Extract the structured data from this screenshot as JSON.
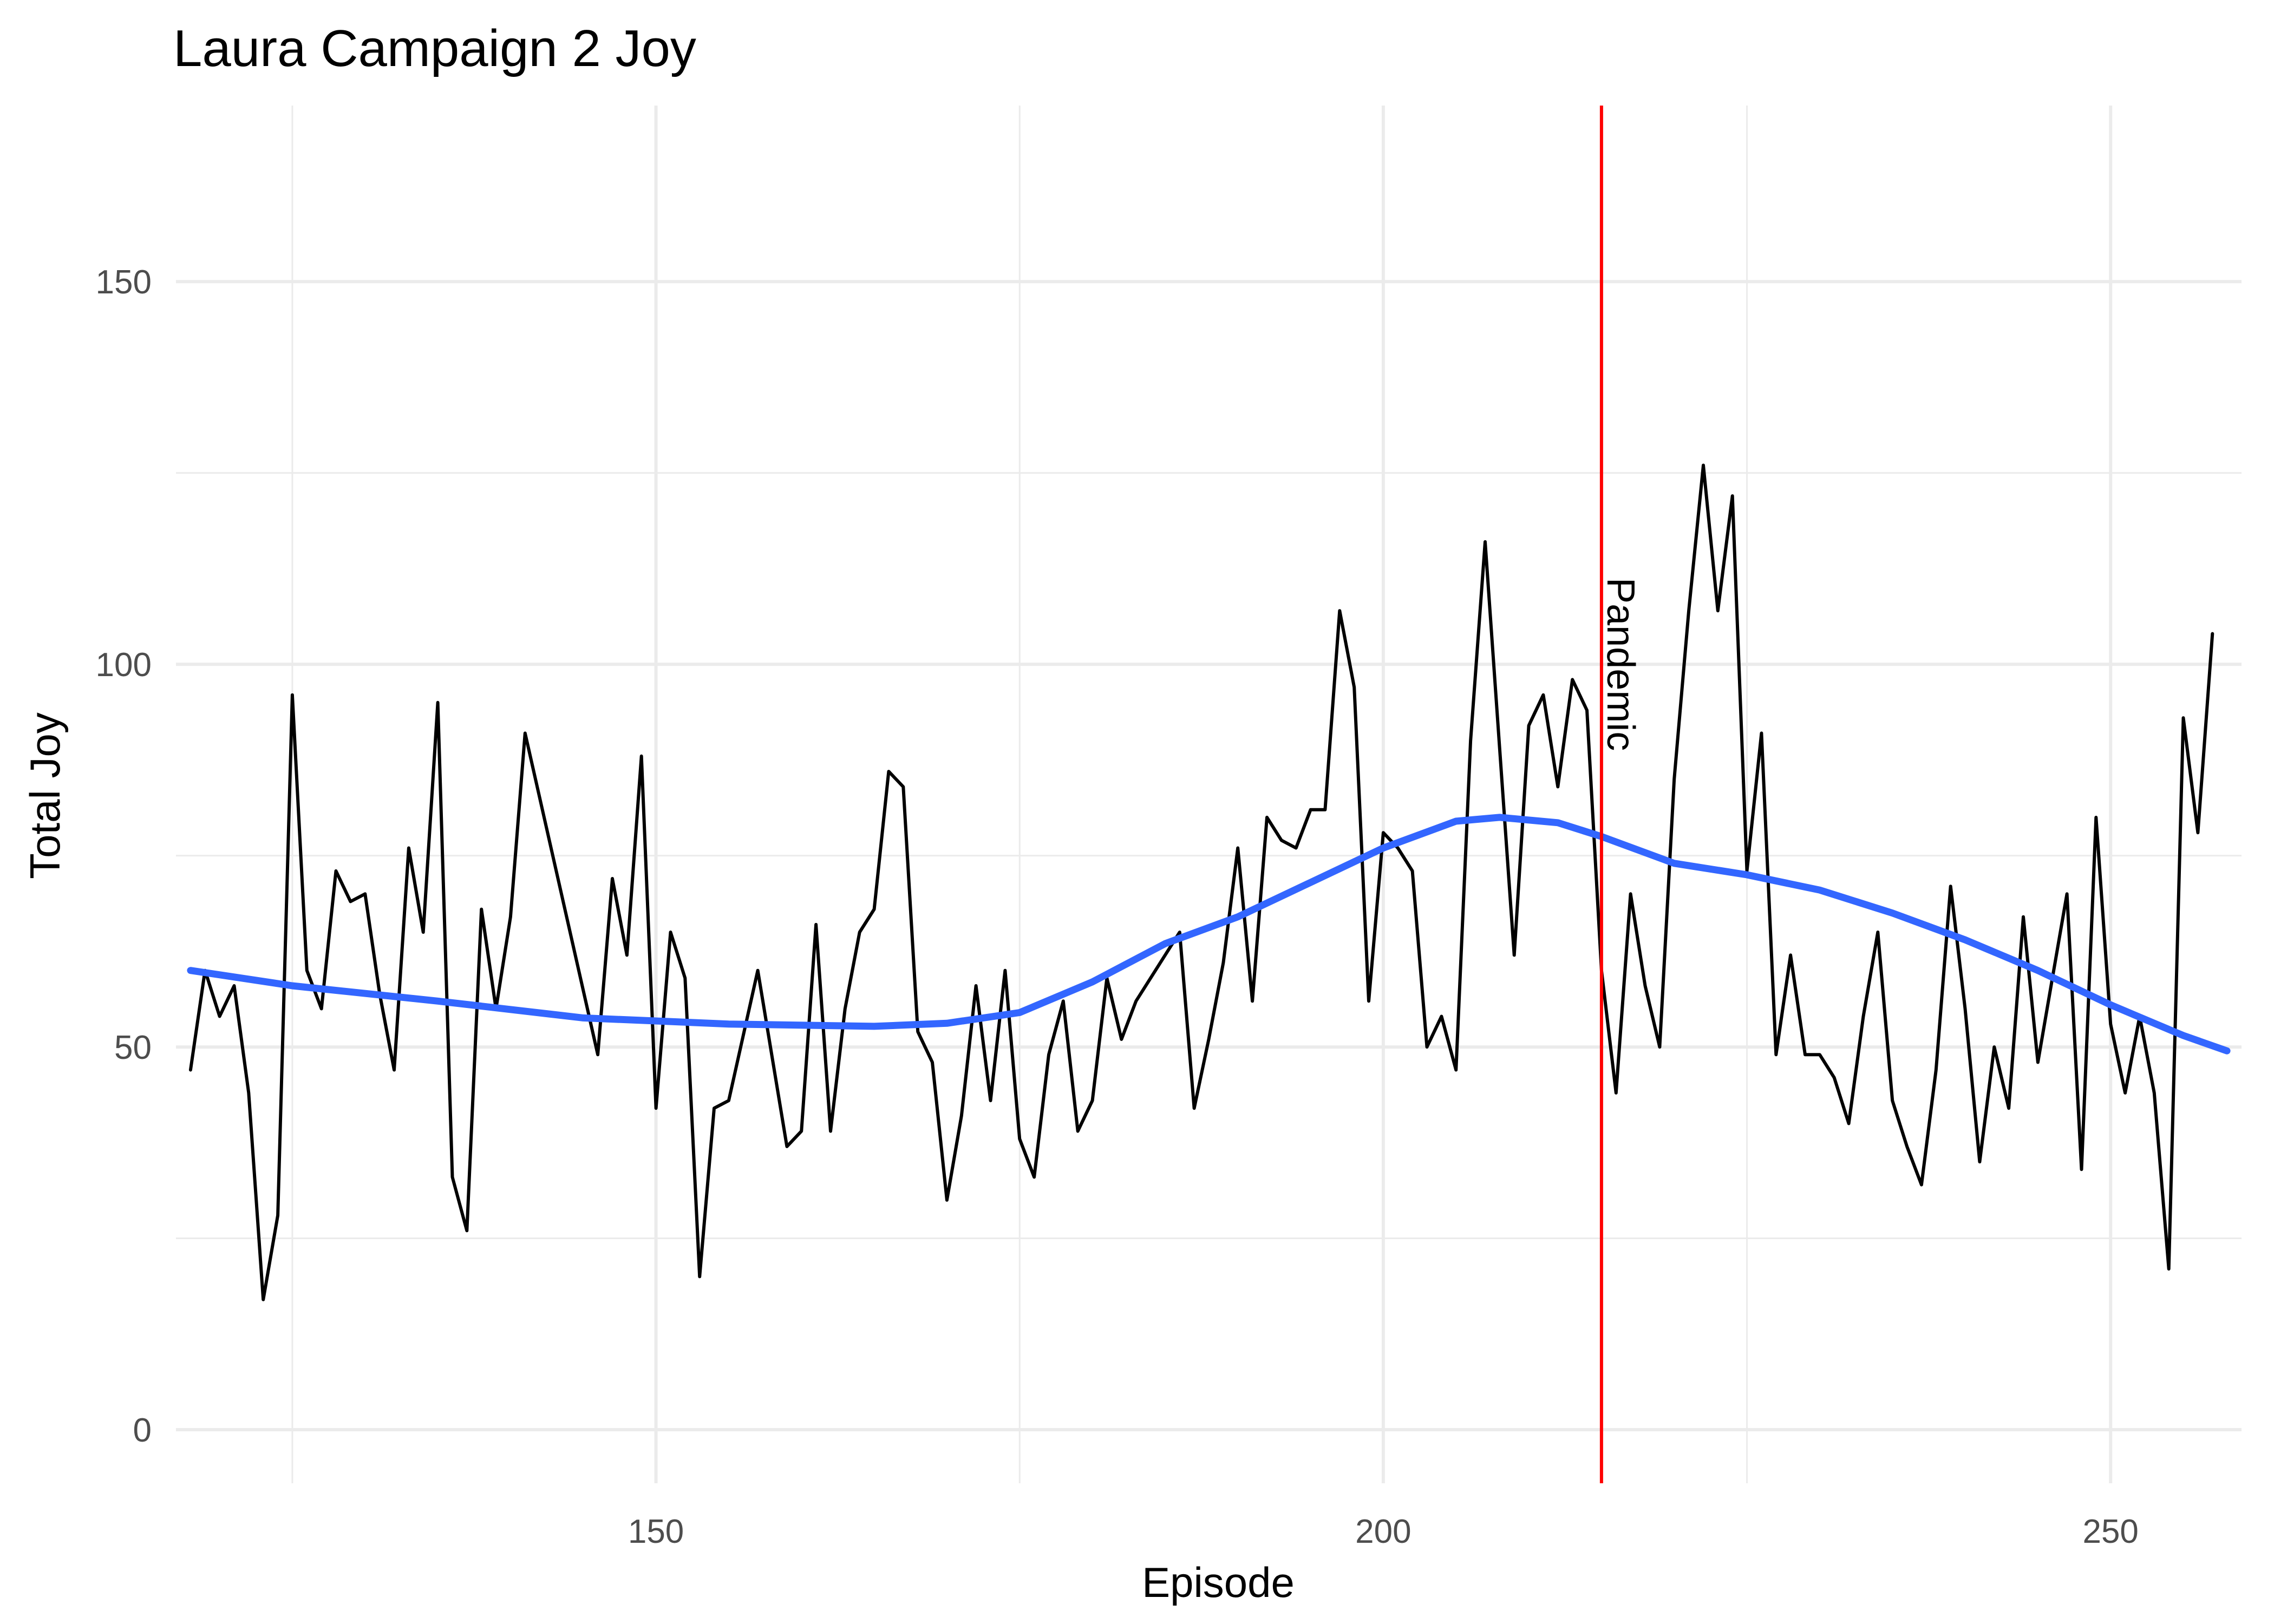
{
  "chart_data": {
    "type": "line",
    "title": "Laura Campaign 2 Joy",
    "xlabel": "Episode",
    "ylabel": "Total Joy",
    "xlim": [
      117,
      259
    ],
    "ylim": [
      -7,
      173
    ],
    "x_ticks": [
      150,
      200,
      250
    ],
    "y_ticks": [
      0,
      50,
      100,
      150
    ],
    "grid": true,
    "legend": "none",
    "series": [
      {
        "type": "line",
        "color": "#000000",
        "points": [
          [
            118,
            47
          ],
          [
            119,
            60
          ],
          [
            120,
            54
          ],
          [
            121,
            58
          ],
          [
            122,
            44
          ],
          [
            123,
            17
          ],
          [
            124,
            28
          ],
          [
            125,
            96
          ],
          [
            126,
            60
          ],
          [
            127,
            55
          ],
          [
            128,
            73
          ],
          [
            129,
            69
          ],
          [
            130,
            70
          ],
          [
            131,
            57
          ],
          [
            132,
            47
          ],
          [
            133,
            76
          ],
          [
            134,
            65
          ],
          [
            135,
            95
          ],
          [
            136,
            33
          ],
          [
            137,
            26
          ],
          [
            138,
            68
          ],
          [
            139,
            55
          ],
          [
            140,
            67
          ],
          [
            141,
            91
          ],
          [
            146,
            49
          ],
          [
            147,
            72
          ],
          [
            148,
            62
          ],
          [
            149,
            88
          ],
          [
            150,
            42
          ],
          [
            151,
            65
          ],
          [
            152,
            59
          ],
          [
            153,
            20
          ],
          [
            154,
            42
          ],
          [
            155,
            43
          ],
          [
            157,
            60
          ],
          [
            159,
            37
          ],
          [
            160,
            39
          ],
          [
            161,
            66
          ],
          [
            162,
            39
          ],
          [
            163,
            55
          ],
          [
            164,
            65
          ],
          [
            165,
            68
          ],
          [
            166,
            86
          ],
          [
            167,
            84
          ],
          [
            168,
            52
          ],
          [
            169,
            48
          ],
          [
            170,
            30
          ],
          [
            171,
            41
          ],
          [
            172,
            58
          ],
          [
            173,
            43
          ],
          [
            174,
            60
          ],
          [
            175,
            38
          ],
          [
            176,
            33
          ],
          [
            177,
            49
          ],
          [
            178,
            56
          ],
          [
            179,
            39
          ],
          [
            180,
            43
          ],
          [
            181,
            59
          ],
          [
            182,
            51
          ],
          [
            183,
            56
          ],
          [
            186,
            65
          ],
          [
            187,
            42
          ],
          [
            188,
            51
          ],
          [
            189,
            61
          ],
          [
            190,
            76
          ],
          [
            191,
            56
          ],
          [
            192,
            80
          ],
          [
            193,
            77
          ],
          [
            194,
            76
          ],
          [
            195,
            81
          ],
          [
            196,
            81
          ],
          [
            197,
            107
          ],
          [
            198,
            97
          ],
          [
            199,
            56
          ],
          [
            200,
            78
          ],
          [
            201,
            76
          ],
          [
            202,
            73
          ],
          [
            203,
            50
          ],
          [
            204,
            54
          ],
          [
            205,
            47
          ],
          [
            206,
            90
          ],
          [
            207,
            116
          ],
          [
            208,
            89
          ],
          [
            209,
            62
          ],
          [
            210,
            92
          ],
          [
            211,
            96
          ],
          [
            212,
            84
          ],
          [
            213,
            98
          ],
          [
            214,
            94
          ],
          [
            215,
            60
          ],
          [
            216,
            44
          ],
          [
            217,
            70
          ],
          [
            218,
            58
          ],
          [
            219,
            50
          ],
          [
            220,
            85
          ],
          [
            221,
            107
          ],
          [
            222,
            126
          ],
          [
            223,
            107
          ],
          [
            224,
            122
          ],
          [
            225,
            73
          ],
          [
            226,
            91
          ],
          [
            227,
            49
          ],
          [
            228,
            62
          ],
          [
            229,
            49
          ],
          [
            230,
            49
          ],
          [
            231,
            46
          ],
          [
            232,
            40
          ],
          [
            233,
            54
          ],
          [
            234,
            65
          ],
          [
            235,
            43
          ],
          [
            236,
            37
          ],
          [
            237,
            32
          ],
          [
            238,
            47
          ],
          [
            239,
            71
          ],
          [
            240,
            55
          ],
          [
            241,
            35
          ],
          [
            242,
            50
          ],
          [
            243,
            42
          ],
          [
            244,
            67
          ],
          [
            245,
            48
          ],
          [
            246,
            59
          ],
          [
            247,
            70
          ],
          [
            248,
            34
          ],
          [
            249,
            80
          ],
          [
            250,
            53
          ],
          [
            251,
            44
          ],
          [
            252,
            54
          ],
          [
            253,
            44
          ],
          [
            254,
            21
          ],
          [
            255,
            93
          ],
          [
            256,
            78
          ],
          [
            257,
            104
          ]
        ]
      },
      {
        "type": "smooth",
        "color": "#3366ff",
        "points": [
          [
            118,
            60
          ],
          [
            125,
            58
          ],
          [
            135,
            56
          ],
          [
            145,
            53.8
          ],
          [
            155,
            53
          ],
          [
            165,
            52.7
          ],
          [
            170,
            53.1
          ],
          [
            175,
            54.5
          ],
          [
            180,
            58.5
          ],
          [
            185,
            63.5
          ],
          [
            190,
            67
          ],
          [
            195,
            71.5
          ],
          [
            200,
            76
          ],
          [
            205,
            79.5
          ],
          [
            208,
            80
          ],
          [
            212,
            79.3
          ],
          [
            215,
            77.5
          ],
          [
            220,
            74
          ],
          [
            225,
            72.5
          ],
          [
            230,
            70.5
          ],
          [
            235,
            67.5
          ],
          [
            240,
            64
          ],
          [
            245,
            60
          ],
          [
            250,
            55.5
          ],
          [
            255,
            51.5
          ],
          [
            258,
            49.5
          ]
        ]
      }
    ],
    "annotations": [
      {
        "type": "vline",
        "x": 215,
        "color": "#ff0000",
        "label": "Pandemic",
        "label_y": 100
      }
    ]
  }
}
